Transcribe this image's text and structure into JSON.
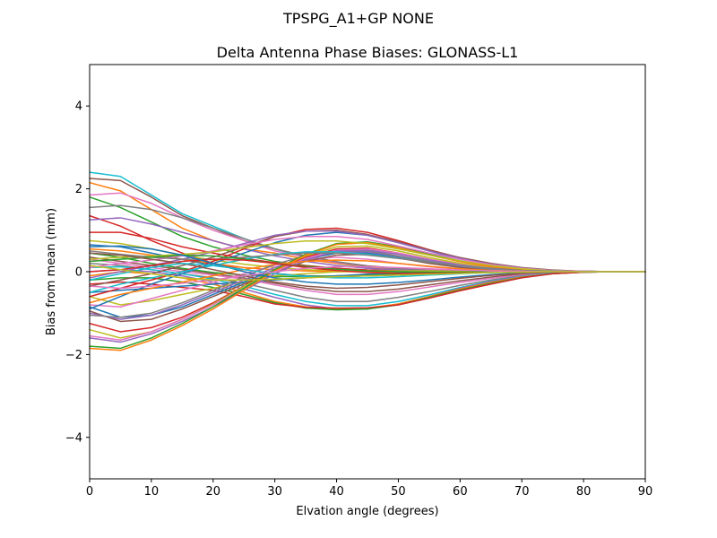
{
  "chart_data": {
    "type": "line",
    "suptitle": "TPSPG_A1+GP     NONE",
    "title": "Delta Antenna Phase Biases: GLONASS-L1",
    "xlabel": "Elvation angle (degrees)",
    "ylabel": "Bias from mean (mm)",
    "xlim": [
      0,
      90
    ],
    "ylim": [
      -5,
      5
    ],
    "xticks": [
      0,
      10,
      20,
      30,
      40,
      50,
      60,
      70,
      80,
      90
    ],
    "yticks": [
      -4,
      -2,
      0,
      2,
      4
    ],
    "x": [
      0,
      5,
      10,
      15,
      20,
      25,
      30,
      35,
      40,
      45,
      50,
      55,
      60,
      65,
      70,
      75,
      80,
      85,
      90
    ],
    "grid": false,
    "legend": false,
    "series": [
      {
        "color": "#17becf",
        "values": [
          2.4,
          2.3,
          1.85,
          1.4,
          1.1,
          0.8,
          0.55,
          0.35,
          0.2,
          0.1,
          0.05,
          0.02,
          0.0,
          -0.02,
          -0.02,
          -0.01,
          0.0,
          0.0,
          0.0
        ]
      },
      {
        "color": "#ff7f0e",
        "values": [
          2.15,
          1.95,
          1.5,
          1.05,
          0.75,
          0.55,
          0.45,
          0.3,
          0.2,
          0.12,
          0.06,
          0.03,
          0.01,
          0.0,
          0.0,
          0.0,
          0.0,
          0.0,
          0.0
        ]
      },
      {
        "color": "#8c564b",
        "values": [
          2.25,
          2.2,
          1.8,
          1.35,
          1.05,
          0.75,
          0.55,
          0.38,
          0.24,
          0.14,
          0.08,
          0.04,
          0.02,
          0.01,
          0.0,
          0.0,
          0.0,
          0.0,
          0.0
        ]
      },
      {
        "color": "#e377c2",
        "values": [
          1.85,
          1.9,
          1.65,
          1.3,
          1.0,
          0.75,
          0.5,
          0.35,
          0.22,
          0.13,
          0.07,
          0.04,
          0.02,
          0.0,
          0.0,
          0.0,
          0.0,
          0.0,
          0.0
        ]
      },
      {
        "color": "#2ca02c",
        "values": [
          1.8,
          1.55,
          1.2,
          0.85,
          0.6,
          0.4,
          0.25,
          0.15,
          0.08,
          0.04,
          0.02,
          0.01,
          0.0,
          0.0,
          0.0,
          0.0,
          0.0,
          0.0,
          0.0
        ]
      },
      {
        "color": "#7f7f7f",
        "values": [
          1.55,
          1.6,
          1.5,
          1.3,
          1.05,
          0.8,
          0.55,
          0.38,
          0.24,
          0.13,
          0.07,
          0.03,
          0.01,
          0.0,
          0.0,
          0.0,
          0.0,
          0.0,
          0.0
        ]
      },
      {
        "color": "#d62728",
        "values": [
          1.35,
          1.1,
          0.75,
          0.45,
          0.2,
          0.05,
          -0.05,
          -0.1,
          -0.12,
          -0.1,
          -0.08,
          -0.05,
          -0.03,
          -0.01,
          0.0,
          0.0,
          0.0,
          0.0,
          0.0
        ]
      },
      {
        "color": "#9467bd",
        "values": [
          1.25,
          1.3,
          1.15,
          0.95,
          0.75,
          0.55,
          0.38,
          0.25,
          0.15,
          0.08,
          0.04,
          0.02,
          0.01,
          0.0,
          0.0,
          0.0,
          0.0,
          0.0,
          0.0
        ]
      },
      {
        "color": "#d62728",
        "values": [
          0.95,
          0.95,
          0.8,
          0.6,
          0.45,
          0.32,
          0.22,
          0.14,
          0.08,
          0.04,
          0.02,
          0.01,
          0.0,
          0.0,
          0.0,
          0.0,
          0.0,
          0.0,
          0.0
        ]
      },
      {
        "color": "#bcbd22",
        "values": [
          0.75,
          0.68,
          0.55,
          0.4,
          0.28,
          0.18,
          0.1,
          0.05,
          0.02,
          0.0,
          -0.01,
          -0.01,
          -0.01,
          0.0,
          0.0,
          0.0,
          0.0,
          0.0,
          0.0
        ]
      },
      {
        "color": "#1f77b4",
        "values": [
          0.65,
          0.6,
          0.45,
          0.3,
          0.15,
          0.05,
          -0.05,
          -0.1,
          -0.12,
          -0.1,
          -0.08,
          -0.05,
          -0.03,
          -0.01,
          0.0,
          0.0,
          0.0,
          0.0,
          0.0
        ]
      },
      {
        "color": "#ff7f0e",
        "values": [
          0.55,
          0.5,
          0.4,
          0.3,
          0.2,
          0.1,
          0.05,
          0.02,
          0.0,
          0.0,
          0.0,
          0.0,
          0.0,
          0.0,
          0.0,
          0.0,
          0.0,
          0.0,
          0.0
        ]
      },
      {
        "color": "#2ca02c",
        "values": [
          0.45,
          0.35,
          0.2,
          0.08,
          -0.02,
          -0.08,
          -0.12,
          -0.12,
          -0.1,
          -0.08,
          -0.05,
          -0.03,
          -0.02,
          -0.01,
          0.0,
          0.0,
          0.0,
          0.0,
          0.0
        ]
      },
      {
        "color": "#8c564b",
        "values": [
          0.35,
          0.25,
          0.15,
          0.05,
          -0.05,
          -0.15,
          -0.28,
          -0.4,
          -0.48,
          -0.48,
          -0.42,
          -0.32,
          -0.22,
          -0.13,
          -0.06,
          -0.02,
          0.0,
          0.0,
          0.0
        ]
      },
      {
        "color": "#e377c2",
        "values": [
          0.3,
          0.2,
          0.1,
          0.0,
          -0.08,
          -0.18,
          -0.32,
          -0.45,
          -0.55,
          -0.55,
          -0.48,
          -0.37,
          -0.26,
          -0.16,
          -0.08,
          -0.03,
          0.0,
          0.0,
          0.0
        ]
      },
      {
        "color": "#7f7f7f",
        "values": [
          0.2,
          0.15,
          0.05,
          -0.05,
          -0.15,
          -0.28,
          -0.45,
          -0.62,
          -0.72,
          -0.72,
          -0.62,
          -0.48,
          -0.33,
          -0.2,
          -0.1,
          -0.04,
          -0.01,
          0.0,
          0.0
        ]
      },
      {
        "color": "#17becf",
        "values": [
          0.1,
          0.12,
          0.05,
          -0.05,
          -0.18,
          -0.35,
          -0.55,
          -0.72,
          -0.82,
          -0.82,
          -0.72,
          -0.56,
          -0.38,
          -0.23,
          -0.11,
          -0.04,
          -0.01,
          0.0,
          0.0
        ]
      },
      {
        "color": "#9467bd",
        "values": [
          0.0,
          0.05,
          0.0,
          -0.1,
          -0.25,
          -0.42,
          -0.62,
          -0.8,
          -0.9,
          -0.9,
          -0.78,
          -0.6,
          -0.4,
          -0.24,
          -0.12,
          -0.05,
          -0.01,
          0.0,
          0.0
        ]
      },
      {
        "color": "#ff7f0e",
        "values": [
          -0.1,
          0.0,
          -0.05,
          -0.15,
          -0.3,
          -0.5,
          -0.72,
          -0.85,
          -0.9,
          -0.88,
          -0.78,
          -0.6,
          -0.42,
          -0.26,
          -0.13,
          -0.05,
          -0.01,
          0.0,
          0.0
        ]
      },
      {
        "color": "#2ca02c",
        "values": [
          -0.2,
          -0.15,
          -0.15,
          -0.25,
          -0.38,
          -0.55,
          -0.75,
          -0.88,
          -0.92,
          -0.9,
          -0.8,
          -0.62,
          -0.44,
          -0.28,
          -0.14,
          -0.05,
          -0.01,
          0.0,
          0.0
        ]
      },
      {
        "color": "#d62728",
        "values": [
          -0.3,
          -0.25,
          -0.3,
          -0.38,
          -0.45,
          -0.6,
          -0.78,
          -0.86,
          -0.88,
          -0.87,
          -0.8,
          -0.64,
          -0.46,
          -0.3,
          -0.15,
          -0.05,
          -0.01,
          0.0,
          0.0
        ]
      },
      {
        "color": "#1f77b4",
        "values": [
          -0.5,
          -0.45,
          -0.4,
          -0.35,
          -0.3,
          -0.25,
          -0.2,
          -0.15,
          -0.1,
          -0.06,
          -0.03,
          -0.01,
          0.0,
          0.0,
          0.0,
          0.0,
          0.0,
          0.0,
          0.0
        ]
      },
      {
        "color": "#bcbd22",
        "values": [
          -0.6,
          -0.8,
          -0.7,
          -0.55,
          -0.4,
          -0.25,
          -0.1,
          -0.05,
          0.0,
          0.02,
          0.02,
          0.02,
          0.01,
          0.0,
          0.0,
          0.0,
          0.0,
          0.0,
          0.0
        ]
      },
      {
        "color": "#e377c2",
        "values": [
          -0.8,
          -0.85,
          -0.65,
          -0.45,
          -0.25,
          -0.05,
          0.15,
          0.3,
          0.35,
          0.3,
          0.2,
          0.12,
          0.06,
          0.02,
          0.0,
          0.0,
          0.0,
          0.0,
          0.0
        ]
      },
      {
        "color": "#1f77b4",
        "values": [
          -0.85,
          -1.1,
          -1.05,
          -0.85,
          -0.55,
          -0.25,
          0.05,
          0.3,
          0.45,
          0.45,
          0.35,
          0.22,
          0.12,
          0.05,
          0.02,
          0.0,
          0.0,
          0.0,
          0.0
        ]
      },
      {
        "color": "#8c564b",
        "values": [
          -0.95,
          -1.2,
          -1.15,
          -0.9,
          -0.6,
          -0.3,
          0.0,
          0.25,
          0.4,
          0.42,
          0.33,
          0.2,
          0.1,
          0.04,
          0.01,
          0.0,
          0.0,
          0.0,
          0.0
        ]
      },
      {
        "color": "#9467bd",
        "values": [
          -1.0,
          -1.15,
          -1.05,
          -0.8,
          -0.5,
          -0.2,
          0.1,
          0.32,
          0.48,
          0.48,
          0.37,
          0.24,
          0.13,
          0.06,
          0.02,
          0.0,
          0.0,
          0.0,
          0.0
        ]
      },
      {
        "color": "#7f7f7f",
        "values": [
          -1.05,
          -1.1,
          -1.0,
          -0.75,
          -0.45,
          -0.12,
          0.18,
          0.38,
          0.5,
          0.5,
          0.38,
          0.25,
          0.14,
          0.06,
          0.02,
          0.0,
          0.0,
          0.0,
          0.0
        ]
      },
      {
        "color": "#d62728",
        "values": [
          -1.25,
          -1.45,
          -1.35,
          -1.1,
          -0.75,
          -0.35,
          0.05,
          0.35,
          0.55,
          0.57,
          0.45,
          0.3,
          0.17,
          0.08,
          0.03,
          0.0,
          0.0,
          0.0,
          0.0
        ]
      },
      {
        "color": "#bcbd22",
        "values": [
          -1.4,
          -1.6,
          -1.45,
          -1.15,
          -0.78,
          -0.36,
          0.05,
          0.38,
          0.6,
          0.62,
          0.5,
          0.34,
          0.2,
          0.1,
          0.04,
          0.01,
          0.0,
          0.0,
          0.0
        ]
      },
      {
        "color": "#e377c2",
        "values": [
          -1.55,
          -1.65,
          -1.45,
          -1.15,
          -0.8,
          -0.4,
          0.0,
          0.32,
          0.52,
          0.55,
          0.45,
          0.3,
          0.17,
          0.08,
          0.03,
          0.0,
          0.0,
          0.0,
          0.0
        ]
      },
      {
        "color": "#9467bd",
        "values": [
          -1.6,
          -1.7,
          -1.5,
          -1.2,
          -0.85,
          -0.45,
          -0.05,
          0.28,
          0.5,
          0.52,
          0.42,
          0.28,
          0.16,
          0.07,
          0.02,
          0.0,
          0.0,
          0.0,
          0.0
        ]
      },
      {
        "color": "#2ca02c",
        "values": [
          -1.8,
          -1.85,
          -1.6,
          -1.25,
          -0.85,
          -0.4,
          0.05,
          0.42,
          0.68,
          0.72,
          0.6,
          0.42,
          0.26,
          0.13,
          0.05,
          0.01,
          0.0,
          0.0,
          0.0
        ]
      },
      {
        "color": "#ff7f0e",
        "values": [
          -1.85,
          -1.9,
          -1.65,
          -1.3,
          -0.9,
          -0.45,
          0.02,
          0.4,
          0.66,
          0.7,
          0.58,
          0.4,
          0.24,
          0.12,
          0.05,
          0.01,
          0.0,
          0.0,
          0.0
        ]
      },
      {
        "color": "#1f77b4",
        "values": [
          -0.9,
          -0.6,
          -0.3,
          -0.05,
          0.2,
          0.45,
          0.7,
          0.88,
          0.95,
          0.88,
          0.7,
          0.5,
          0.3,
          0.17,
          0.08,
          0.03,
          0.01,
          0.0,
          0.0
        ]
      },
      {
        "color": "#d62728",
        "values": [
          -0.6,
          -0.4,
          -0.2,
          0.0,
          0.25,
          0.55,
          0.85,
          1.02,
          1.05,
          0.95,
          0.75,
          0.53,
          0.33,
          0.18,
          0.08,
          0.03,
          0.01,
          0.0,
          0.0
        ]
      },
      {
        "color": "#8c564b",
        "values": [
          -0.35,
          -0.2,
          -0.05,
          0.15,
          0.35,
          0.6,
          0.85,
          0.98,
          1.0,
          0.9,
          0.72,
          0.52,
          0.34,
          0.2,
          0.1,
          0.04,
          0.01,
          0.0,
          0.0
        ]
      },
      {
        "color": "#9467bd",
        "values": [
          -0.15,
          0.0,
          0.15,
          0.3,
          0.48,
          0.68,
          0.88,
          0.98,
          0.98,
          0.88,
          0.7,
          0.5,
          0.32,
          0.18,
          0.09,
          0.03,
          0.01,
          0.0,
          0.0
        ]
      },
      {
        "color": "#e377c2",
        "values": [
          0.1,
          0.2,
          0.28,
          0.38,
          0.5,
          0.65,
          0.78,
          0.85,
          0.85,
          0.78,
          0.62,
          0.45,
          0.3,
          0.17,
          0.08,
          0.03,
          0.01,
          0.0,
          0.0
        ]
      },
      {
        "color": "#bcbd22",
        "values": [
          0.3,
          0.35,
          0.38,
          0.42,
          0.48,
          0.58,
          0.68,
          0.74,
          0.74,
          0.68,
          0.55,
          0.4,
          0.26,
          0.15,
          0.07,
          0.02,
          0.0,
          0.0,
          0.0
        ]
      },
      {
        "color": "#17becf",
        "values": [
          -0.5,
          -0.3,
          -0.15,
          0.0,
          0.15,
          0.3,
          0.42,
          0.48,
          0.48,
          0.42,
          0.33,
          0.23,
          0.14,
          0.08,
          0.03,
          0.01,
          0.0,
          0.0,
          0.0
        ]
      },
      {
        "color": "#7f7f7f",
        "values": [
          0.5,
          0.42,
          0.35,
          0.3,
          0.3,
          0.35,
          0.4,
          0.45,
          0.45,
          0.4,
          0.32,
          0.23,
          0.14,
          0.08,
          0.03,
          0.01,
          0.0,
          0.0,
          0.0
        ]
      },
      {
        "color": "#ff7f0e",
        "values": [
          -0.75,
          -0.55,
          -0.4,
          -0.25,
          -0.1,
          0.05,
          0.18,
          0.25,
          0.28,
          0.26,
          0.2,
          0.13,
          0.07,
          0.03,
          0.01,
          0.0,
          0.0,
          0.0,
          0.0
        ]
      },
      {
        "color": "#2ca02c",
        "values": [
          0.25,
          0.3,
          0.35,
          0.4,
          0.38,
          0.3,
          0.2,
          0.12,
          0.06,
          0.02,
          0.0,
          -0.01,
          -0.01,
          0.0,
          0.0,
          0.0,
          0.0,
          0.0,
          0.0
        ]
      },
      {
        "color": "#d62728",
        "values": [
          0.0,
          0.05,
          0.15,
          0.25,
          0.3,
          0.28,
          0.2,
          0.1,
          0.03,
          -0.02,
          -0.04,
          -0.04,
          -0.03,
          -0.02,
          -0.01,
          0.0,
          0.0,
          0.0,
          0.0
        ]
      },
      {
        "color": "#1f77b4",
        "values": [
          0.6,
          0.62,
          0.55,
          0.4,
          0.2,
          0.0,
          -0.15,
          -0.25,
          -0.3,
          -0.3,
          -0.26,
          -0.2,
          -0.13,
          -0.07,
          -0.03,
          -0.01,
          0.0,
          0.0,
          0.0
        ]
      },
      {
        "color": "#8c564b",
        "values": [
          0.45,
          0.4,
          0.3,
          0.2,
          0.05,
          -0.1,
          -0.25,
          -0.35,
          -0.4,
          -0.38,
          -0.32,
          -0.24,
          -0.16,
          -0.09,
          -0.04,
          -0.01,
          0.0,
          0.0,
          0.0
        ]
      },
      {
        "color": "#17becf",
        "values": [
          -0.2,
          -0.05,
          0.1,
          0.2,
          0.15,
          0.05,
          -0.05,
          -0.12,
          -0.15,
          -0.15,
          -0.12,
          -0.08,
          -0.05,
          -0.02,
          -0.01,
          0.0,
          0.0,
          0.0,
          0.0
        ]
      },
      {
        "color": "#e377c2",
        "values": [
          -0.35,
          -0.4,
          -0.35,
          -0.28,
          -0.2,
          -0.1,
          0.0,
          0.08,
          0.12,
          0.12,
          0.1,
          0.07,
          0.04,
          0.02,
          0.01,
          0.0,
          0.0,
          0.0,
          0.0
        ]
      },
      {
        "color": "#bcbd22",
        "values": [
          0.15,
          0.05,
          -0.05,
          -0.15,
          -0.2,
          -0.2,
          -0.18,
          -0.15,
          -0.12,
          -0.1,
          -0.08,
          -0.06,
          -0.04,
          -0.02,
          -0.01,
          0.0,
          0.0,
          0.0,
          0.0
        ]
      }
    ]
  }
}
